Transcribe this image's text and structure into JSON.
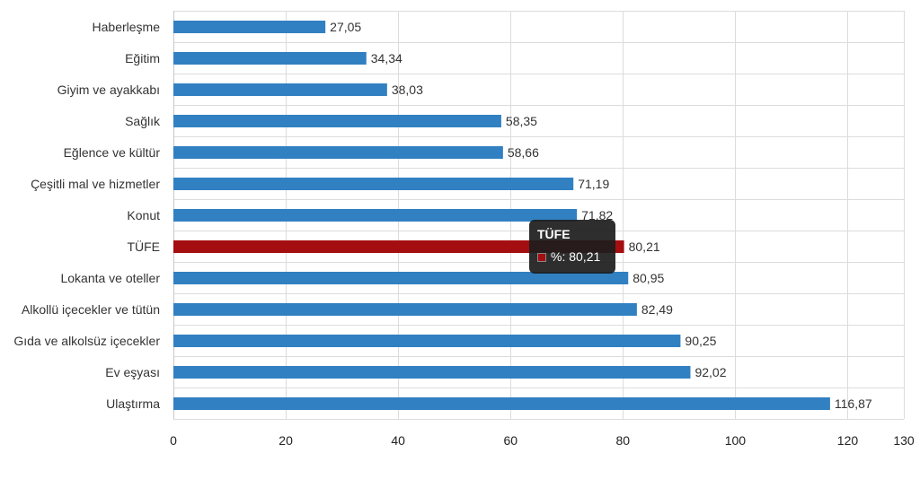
{
  "chart_data": {
    "type": "bar",
    "orientation": "horizontal",
    "categories": [
      "Haberleşme",
      "Eğitim",
      "Giyim ve ayakkabı",
      "Sağlık",
      "Eğlence ve kültür",
      "Çeşitli mal ve hizmetler",
      "Konut",
      "TÜFE",
      "Lokanta ve oteller",
      "Alkollü içecekler ve tütün",
      "Gıda ve alkolsüz içecekler",
      "Ev eşyası",
      "Ulaştırma"
    ],
    "values": [
      27.05,
      34.34,
      38.03,
      58.35,
      58.66,
      71.19,
      71.82,
      80.21,
      80.95,
      82.49,
      90.25,
      92.02,
      116.87
    ],
    "value_labels": [
      "27,05",
      "34,34",
      "38,03",
      "58,35",
      "58,66",
      "71,19",
      "71,82",
      "80,21",
      "80,95",
      "82,49",
      "90,25",
      "92,02",
      "116,87"
    ],
    "xlim": [
      0,
      130
    ],
    "xticks": [
      0,
      20,
      40,
      60,
      80,
      100,
      120,
      130
    ],
    "grid": true,
    "bar_color": "#3180c1",
    "highlight_category": "TÜFE",
    "highlight_color": "#a50e10",
    "tooltip": {
      "title": "TÜFE",
      "value_text": "%: 80,21",
      "swatch_color": "#a50e10"
    }
  }
}
